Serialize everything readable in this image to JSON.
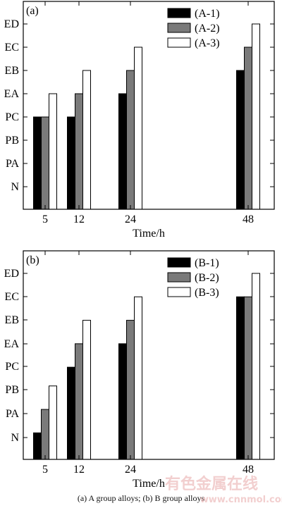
{
  "chart_data": [
    {
      "type": "bar",
      "panel_label": "(a)",
      "categories": [
        "5",
        "12",
        "24",
        "48"
      ],
      "xlabel": "Time/h",
      "ylabel": "",
      "y_levels": [
        "N",
        "PA",
        "PB",
        "PC",
        "EA",
        "EB",
        "EC",
        "ED"
      ],
      "ylim": [
        0,
        8
      ],
      "legend_position": "top-right",
      "series": [
        {
          "name": "(A-1)",
          "color": "#000000",
          "values": [
            4.0,
            4.0,
            5.0,
            6.0
          ]
        },
        {
          "name": "(A-2)",
          "color": "#7a7a7a",
          "values": [
            4.0,
            5.0,
            6.0,
            7.0
          ]
        },
        {
          "name": "(A-3)",
          "color": "#ffffff",
          "values": [
            5.0,
            6.0,
            7.0,
            8.0
          ]
        }
      ]
    },
    {
      "type": "bar",
      "panel_label": "(b)",
      "categories": [
        "5",
        "12",
        "24",
        "48"
      ],
      "xlabel": "Time/h",
      "ylabel": "",
      "y_levels": [
        "N",
        "PA",
        "PB",
        "PC",
        "EA",
        "EB",
        "EC",
        "ED"
      ],
      "ylim": [
        0,
        8
      ],
      "legend_position": "top-right",
      "series": [
        {
          "name": "(B-1)",
          "color": "#000000",
          "values": [
            1.2,
            4.0,
            5.0,
            7.0
          ]
        },
        {
          "name": "(B-2)",
          "color": "#7a7a7a",
          "values": [
            2.2,
            5.0,
            6.0,
            7.0
          ]
        },
        {
          "name": "(B-3)",
          "color": "#ffffff",
          "values": [
            3.2,
            6.0,
            7.0,
            8.0
          ]
        }
      ]
    }
  ],
  "caption": "(a) A group alloys; (b) B group alloys",
  "watermark": "有色金属在线 www.cnnmol.com"
}
